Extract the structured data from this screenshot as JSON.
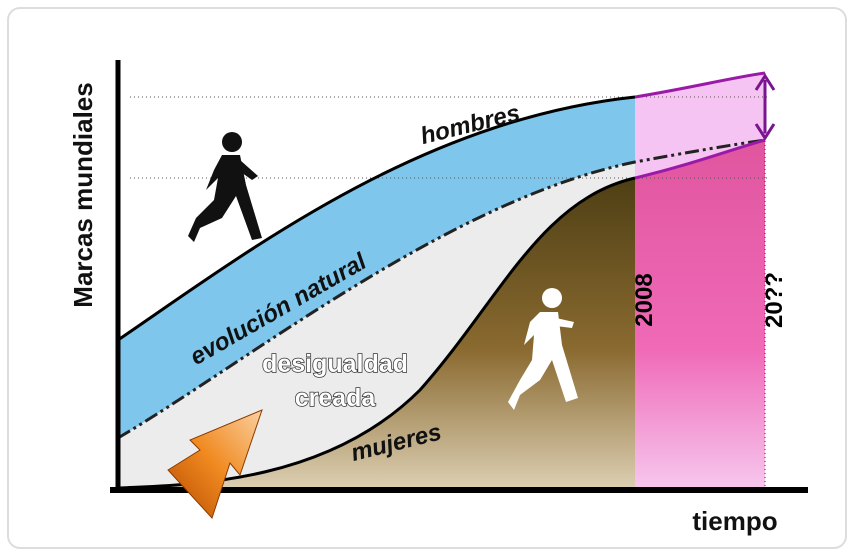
{
  "axes": {
    "y_label": "Marcas mundiales",
    "x_label": "tiempo"
  },
  "curves": {
    "men": "hombres",
    "natural": "evolución natural",
    "women": "mujeres"
  },
  "region": {
    "lines": [
      "desigualdad",
      "creada"
    ]
  },
  "markers": {
    "now": "2008",
    "future": "20??"
  }
}
